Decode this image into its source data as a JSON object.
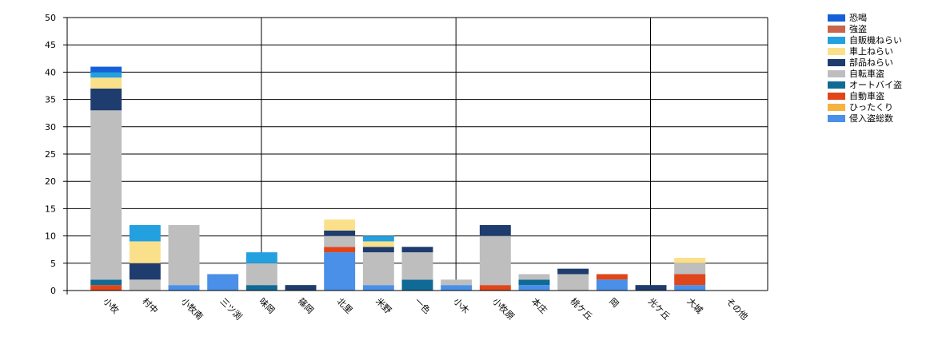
{
  "chart_data": {
    "type": "bar",
    "stacked": true,
    "grid": true,
    "legend_position": "top-right",
    "ylim": [
      0,
      50
    ],
    "yticks": [
      0,
      5,
      10,
      15,
      20,
      25,
      30,
      35,
      40,
      45,
      50
    ],
    "categories": [
      "小牧",
      "村中",
      "小牧南",
      "三ツ渕",
      "味岡",
      "篠岡",
      "北里",
      "米野",
      "一色",
      "小木",
      "小牧原",
      "本庄",
      "桃ケ丘",
      "岡",
      "光ケ丘",
      "大城",
      "その他"
    ],
    "series": [
      {
        "name": "侵入盗総数",
        "color": "#4a8fe8",
        "values": [
          0,
          0,
          1,
          3,
          0,
          0,
          7,
          1,
          0,
          1,
          0,
          1,
          0,
          2,
          0,
          1,
          0
        ]
      },
      {
        "name": "ひったくり",
        "color": "#f5b340",
        "values": [
          0,
          0,
          0,
          0,
          0,
          0,
          0,
          0,
          0,
          0,
          0,
          0,
          0,
          0,
          0,
          0,
          0
        ]
      },
      {
        "name": "自動車盗",
        "color": "#e0461a",
        "values": [
          1,
          0,
          0,
          0,
          0,
          0,
          1,
          0,
          0,
          0,
          1,
          0,
          0,
          1,
          0,
          2,
          0
        ]
      },
      {
        "name": "オートバイ盗",
        "color": "#0f6a96",
        "values": [
          1,
          0,
          0,
          0,
          1,
          0,
          0,
          0,
          2,
          0,
          0,
          1,
          0,
          0,
          0,
          0,
          0
        ]
      },
      {
        "name": "自転車盗",
        "color": "#bebebe",
        "values": [
          31,
          2,
          11,
          0,
          4,
          0,
          2,
          6,
          5,
          1,
          9,
          1,
          3,
          0,
          0,
          2,
          0
        ]
      },
      {
        "name": "部品ねらい",
        "color": "#1e3c6e",
        "values": [
          4,
          3,
          0,
          0,
          0,
          1,
          1,
          1,
          1,
          0,
          2,
          0,
          1,
          0,
          1,
          0,
          0
        ]
      },
      {
        "name": "車上ねらい",
        "color": "#fbe08c",
        "values": [
          2,
          4,
          0,
          0,
          0,
          0,
          2,
          1,
          0,
          0,
          0,
          0,
          0,
          0,
          0,
          1,
          0
        ]
      },
      {
        "name": "自販機ねらい",
        "color": "#23a0e0",
        "values": [
          1,
          3,
          0,
          0,
          2,
          0,
          0,
          1,
          0,
          0,
          0,
          0,
          0,
          0,
          0,
          0,
          0
        ]
      },
      {
        "name": "強盗",
        "color": "#c8654b",
        "values": [
          0,
          0,
          0,
          0,
          0,
          0,
          0,
          0,
          0,
          0,
          0,
          0,
          0,
          0,
          0,
          0,
          0
        ]
      },
      {
        "name": "恐喝",
        "color": "#1560d8",
        "values": [
          1,
          0,
          0,
          0,
          0,
          0,
          0,
          0,
          0,
          0,
          0,
          0,
          0,
          0,
          0,
          0,
          0
        ]
      }
    ],
    "legend_order": [
      "恐喝",
      "強盗",
      "自販機ねらい",
      "車上ねらい",
      "部品ねらい",
      "自転車盗",
      "オートバイ盗",
      "自動車盗",
      "ひったくり",
      "侵入盗総数"
    ]
  }
}
